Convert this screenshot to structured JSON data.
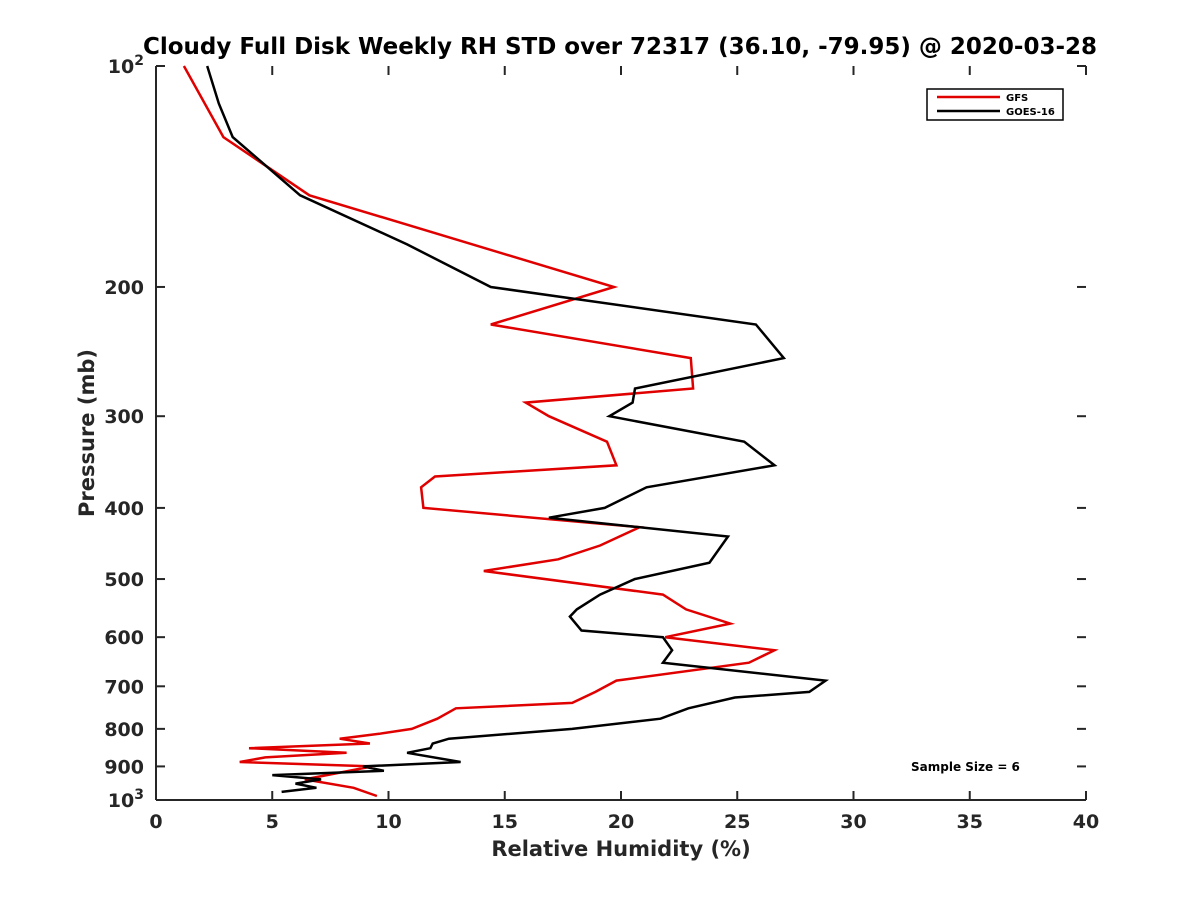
{
  "chart_data": {
    "type": "line",
    "title": "Cloudy Full Disk Weekly RH STD over 72317 (36.10, -79.95) @ 2020-03-28",
    "xlabel": "Relative Humidity (%)",
    "ylabel": "Pressure (mb)",
    "xlim": [
      0,
      40
    ],
    "ylim": [
      100,
      1000
    ],
    "y_scale": "log",
    "y_reversed": true,
    "x_ticks": [
      0,
      5,
      10,
      15,
      20,
      25,
      30,
      35,
      40
    ],
    "x_tick_labels": [
      "0",
      "5",
      "10",
      "15",
      "20",
      "25",
      "30",
      "35",
      "40"
    ],
    "y_ticks": [
      {
        "value": 100,
        "base": "10",
        "exp": "2"
      },
      {
        "value": 200,
        "label": "200"
      },
      {
        "value": 300,
        "label": "300"
      },
      {
        "value": 400,
        "label": "400"
      },
      {
        "value": 500,
        "label": "500"
      },
      {
        "value": 600,
        "label": "600"
      },
      {
        "value": 700,
        "label": "700"
      },
      {
        "value": 800,
        "label": "800"
      },
      {
        "value": 900,
        "label": "900"
      },
      {
        "value": 1000,
        "base": "10",
        "exp": "3"
      }
    ],
    "legend_position": "top-right",
    "annotation": "Sample Size = 6",
    "series": [
      {
        "name": "GFS",
        "color": "#e00000",
        "points": [
          [
            1.2,
            100
          ],
          [
            2.9,
            125
          ],
          [
            6.6,
            150
          ],
          [
            19.7,
            200
          ],
          [
            14.4,
            225
          ],
          [
            23.0,
            250
          ],
          [
            23.1,
            275
          ],
          [
            15.9,
            287.5
          ],
          [
            16.9,
            300
          ],
          [
            19.4,
            325
          ],
          [
            19.8,
            350
          ],
          [
            12.0,
            362.5
          ],
          [
            11.4,
            375
          ],
          [
            11.5,
            400
          ],
          [
            20.8,
            425
          ],
          [
            19.1,
            450
          ],
          [
            17.3,
            470
          ],
          [
            14.1,
            487.5
          ],
          [
            21.8,
            525
          ],
          [
            22.8,
            550
          ],
          [
            24.7,
            575
          ],
          [
            21.9,
            600
          ],
          [
            26.6,
            625
          ],
          [
            25.5,
            650
          ],
          [
            19.8,
            687.5
          ],
          [
            18.9,
            712.5
          ],
          [
            17.9,
            737.5
          ],
          [
            12.9,
            750
          ],
          [
            12.1,
            775
          ],
          [
            11.0,
            800
          ],
          [
            9.6,
            812.5
          ],
          [
            7.9,
            825
          ],
          [
            9.2,
            837.5
          ],
          [
            4.0,
            850
          ],
          [
            8.2,
            862.5
          ],
          [
            4.7,
            875
          ],
          [
            3.6,
            887.5
          ],
          [
            9.3,
            900
          ],
          [
            6.4,
            937.5
          ],
          [
            8.5,
            962.5
          ],
          [
            9.5,
            987.5
          ]
        ]
      },
      {
        "name": "GOES-16",
        "color": "#000000",
        "points": [
          [
            2.2,
            100
          ],
          [
            2.7,
            112.5
          ],
          [
            3.3,
            125
          ],
          [
            6.2,
            150
          ],
          [
            10.8,
            175
          ],
          [
            14.4,
            200
          ],
          [
            25.8,
            225
          ],
          [
            27.0,
            250
          ],
          [
            20.6,
            275
          ],
          [
            20.5,
            287.5
          ],
          [
            19.5,
            300
          ],
          [
            25.3,
            325
          ],
          [
            26.6,
            350
          ],
          [
            21.1,
            375
          ],
          [
            19.3,
            400
          ],
          [
            16.9,
            412.5
          ],
          [
            24.6,
            437.5
          ],
          [
            23.8,
            475
          ],
          [
            20.6,
            500
          ],
          [
            19.1,
            525
          ],
          [
            18.1,
            550
          ],
          [
            17.8,
            562.5
          ],
          [
            18.3,
            587.5
          ],
          [
            21.8,
            600
          ],
          [
            22.2,
            625
          ],
          [
            21.8,
            650
          ],
          [
            28.8,
            687.5
          ],
          [
            28.1,
            712.5
          ],
          [
            24.9,
            725
          ],
          [
            22.9,
            750
          ],
          [
            21.7,
            775
          ],
          [
            17.9,
            800
          ],
          [
            12.6,
            825
          ],
          [
            11.9,
            837.5
          ],
          [
            11.8,
            850
          ],
          [
            10.8,
            862.5
          ],
          [
            13.1,
            887.5
          ],
          [
            8.9,
            900
          ],
          [
            9.8,
            912.5
          ],
          [
            5.0,
            925
          ],
          [
            7.1,
            937.5
          ],
          [
            6.0,
            950
          ],
          [
            6.9,
            962.5
          ],
          [
            5.4,
            975
          ]
        ]
      }
    ]
  }
}
